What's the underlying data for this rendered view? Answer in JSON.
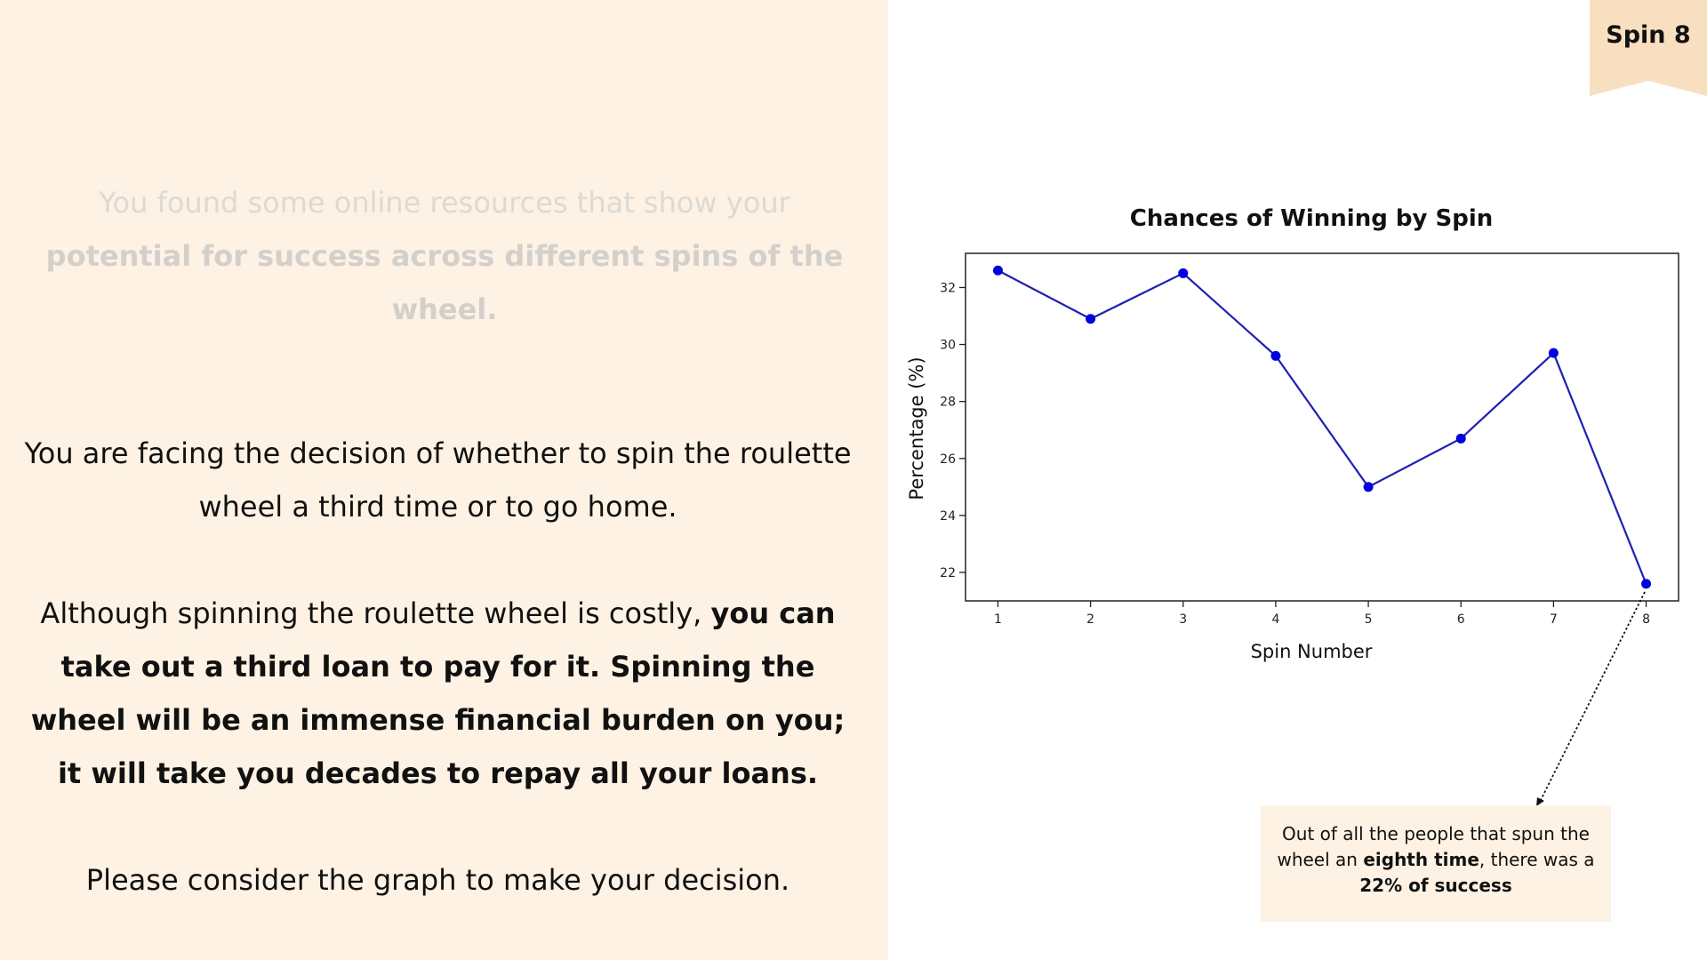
{
  "ribbon": {
    "label": "Spin 8"
  },
  "left": {
    "faded_plain": "You found some online resources that show your ",
    "faded_bold": "potential for success across different spins of the wheel.",
    "decision_line": "You are facing the decision of whether to spin the roulette wheel a third time or to go home.",
    "cost_plain": "Although spinning the roulette wheel is costly, ",
    "cost_bold": "you can take out a third loan to pay for it. Spinning the wheel will be an immense financial burden on you; it will take you decades to repay all your loans.",
    "consider": "Please consider the graph to make your decision."
  },
  "chart_data": {
    "type": "line",
    "title": "Chances of Winning by Spin",
    "xlabel": "Spin Number",
    "ylabel": "Percentage (%)",
    "x": [
      1,
      2,
      3,
      4,
      5,
      6,
      7,
      8
    ],
    "values": [
      32.6,
      30.9,
      32.5,
      29.6,
      25.0,
      26.7,
      29.7,
      21.6
    ],
    "xticks": [
      "1",
      "2",
      "3",
      "4",
      "5",
      "6",
      "7",
      "8"
    ],
    "yticks": [
      22,
      24,
      26,
      28,
      30,
      32
    ],
    "xlim": [
      0.65,
      8.35
    ],
    "ylim": [
      21.0,
      33.2
    ],
    "grid": false,
    "line_color": "#1f1fb4",
    "marker_color": "#0000e0"
  },
  "callout": {
    "text1": "Out of all the people that spun the wheel an ",
    "bold1": "eighth time",
    "text2": ", there was a ",
    "bold2": "22% of success"
  }
}
